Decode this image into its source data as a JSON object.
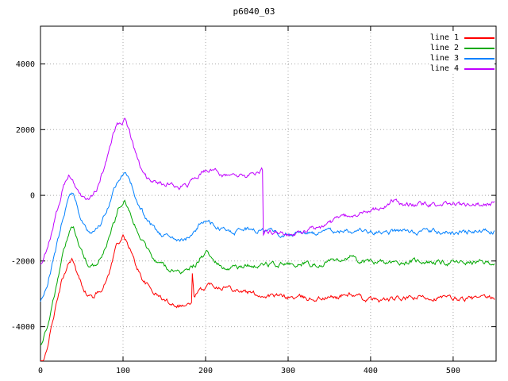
{
  "chart_data": {
    "type": "line",
    "title": "p6040_03",
    "xlabel": "",
    "ylabel": "",
    "xlim": [
      0,
      552
    ],
    "ylim": [
      -5050,
      5150
    ],
    "xticks": [
      0,
      100,
      200,
      300,
      400,
      500
    ],
    "yticks": [
      -4000,
      -2000,
      0,
      2000,
      4000
    ],
    "grid": true,
    "grid_style": "dotted",
    "legend_position": "top-right-inside",
    "background_color": "#ffffff",
    "border_color": "#000000",
    "grid_color": "#a8a8a8",
    "noise_amplitude": 55,
    "series": [
      {
        "name": "line 1",
        "color": "#ff0000",
        "points": [
          [
            0,
            -5400
          ],
          [
            5,
            -5000
          ],
          [
            15,
            -3800
          ],
          [
            25,
            -2700
          ],
          [
            33,
            -2100
          ],
          [
            38,
            -1900
          ],
          [
            44,
            -2400
          ],
          [
            50,
            -2700
          ],
          [
            57,
            -3050
          ],
          [
            63,
            -3100
          ],
          [
            70,
            -2950
          ],
          [
            78,
            -2700
          ],
          [
            85,
            -2200
          ],
          [
            92,
            -1500
          ],
          [
            100,
            -1250
          ],
          [
            108,
            -1600
          ],
          [
            115,
            -2100
          ],
          [
            125,
            -2600
          ],
          [
            135,
            -2900
          ],
          [
            150,
            -3200
          ],
          [
            163,
            -3300
          ],
          [
            175,
            -3350
          ],
          [
            183,
            -3300
          ],
          [
            184,
            -2450
          ],
          [
            186,
            -3050
          ],
          [
            195,
            -2900
          ],
          [
            205,
            -2700
          ],
          [
            215,
            -2750
          ],
          [
            230,
            -2800
          ],
          [
            250,
            -2950
          ],
          [
            270,
            -3050
          ],
          [
            300,
            -3100
          ],
          [
            330,
            -3150
          ],
          [
            360,
            -3100
          ],
          [
            375,
            -3000
          ],
          [
            390,
            -3150
          ],
          [
            410,
            -3200
          ],
          [
            440,
            -3150
          ],
          [
            470,
            -3100
          ],
          [
            500,
            -3150
          ],
          [
            525,
            -3150
          ],
          [
            550,
            -3150
          ]
        ]
      },
      {
        "name": "line 2",
        "color": "#00a800",
        "points": [
          [
            0,
            -4600
          ],
          [
            8,
            -4000
          ],
          [
            18,
            -2900
          ],
          [
            28,
            -1700
          ],
          [
            35,
            -1050
          ],
          [
            40,
            -950
          ],
          [
            46,
            -1450
          ],
          [
            52,
            -1800
          ],
          [
            58,
            -2100
          ],
          [
            65,
            -2150
          ],
          [
            72,
            -1950
          ],
          [
            80,
            -1500
          ],
          [
            88,
            -900
          ],
          [
            95,
            -400
          ],
          [
            102,
            -150
          ],
          [
            110,
            -600
          ],
          [
            118,
            -1100
          ],
          [
            128,
            -1600
          ],
          [
            140,
            -2000
          ],
          [
            155,
            -2250
          ],
          [
            165,
            -2350
          ],
          [
            178,
            -2300
          ],
          [
            188,
            -2100
          ],
          [
            195,
            -1850
          ],
          [
            202,
            -1750
          ],
          [
            210,
            -1900
          ],
          [
            220,
            -2150
          ],
          [
            235,
            -2200
          ],
          [
            255,
            -2150
          ],
          [
            280,
            -2100
          ],
          [
            310,
            -2100
          ],
          [
            340,
            -2100
          ],
          [
            365,
            -1950
          ],
          [
            375,
            -1880
          ],
          [
            385,
            -2000
          ],
          [
            400,
            -2050
          ],
          [
            430,
            -2050
          ],
          [
            460,
            -2000
          ],
          [
            490,
            -2050
          ],
          [
            520,
            -2050
          ],
          [
            550,
            -2050
          ]
        ]
      },
      {
        "name": "line 3",
        "color": "#0080ff",
        "points": [
          [
            0,
            -3200
          ],
          [
            8,
            -2700
          ],
          [
            18,
            -1700
          ],
          [
            28,
            -600
          ],
          [
            35,
            0
          ],
          [
            40,
            100
          ],
          [
            46,
            -500
          ],
          [
            52,
            -850
          ],
          [
            58,
            -1100
          ],
          [
            65,
            -1150
          ],
          [
            72,
            -950
          ],
          [
            80,
            -500
          ],
          [
            88,
            100
          ],
          [
            95,
            500
          ],
          [
            102,
            750
          ],
          [
            110,
            300
          ],
          [
            118,
            -200
          ],
          [
            128,
            -700
          ],
          [
            140,
            -1100
          ],
          [
            155,
            -1300
          ],
          [
            165,
            -1400
          ],
          [
            175,
            -1350
          ],
          [
            185,
            -1150
          ],
          [
            195,
            -800
          ],
          [
            200,
            -750
          ],
          [
            210,
            -900
          ],
          [
            220,
            -1050
          ],
          [
            235,
            -1100
          ],
          [
            255,
            -1050
          ],
          [
            275,
            -1100
          ],
          [
            300,
            -1200
          ],
          [
            320,
            -1150
          ],
          [
            350,
            -1100
          ],
          [
            380,
            -1100
          ],
          [
            410,
            -1150
          ],
          [
            440,
            -1100
          ],
          [
            470,
            -1100
          ],
          [
            500,
            -1150
          ],
          [
            525,
            -1100
          ],
          [
            550,
            -1120
          ]
        ]
      },
      {
        "name": "line 4",
        "color": "#c000ff",
        "points": [
          [
            0,
            -2100
          ],
          [
            8,
            -1600
          ],
          [
            18,
            -700
          ],
          [
            28,
            300
          ],
          [
            34,
            600
          ],
          [
            38,
            550
          ],
          [
            44,
            200
          ],
          [
            50,
            0
          ],
          [
            56,
            -100
          ],
          [
            62,
            -50
          ],
          [
            68,
            200
          ],
          [
            75,
            700
          ],
          [
            82,
            1300
          ],
          [
            88,
            1900
          ],
          [
            93,
            2250
          ],
          [
            97,
            2150
          ],
          [
            102,
            2300
          ],
          [
            108,
            1900
          ],
          [
            115,
            1300
          ],
          [
            122,
            800
          ],
          [
            130,
            500
          ],
          [
            140,
            400
          ],
          [
            150,
            350
          ],
          [
            158,
            300
          ],
          [
            168,
            250
          ],
          [
            178,
            300
          ],
          [
            188,
            500
          ],
          [
            195,
            700
          ],
          [
            205,
            800
          ],
          [
            212,
            750
          ],
          [
            220,
            600
          ],
          [
            230,
            550
          ],
          [
            240,
            600
          ],
          [
            250,
            550
          ],
          [
            258,
            600
          ],
          [
            264,
            650
          ],
          [
            268,
            800
          ],
          [
            269,
            780
          ],
          [
            270,
            -1150
          ],
          [
            280,
            -1100
          ],
          [
            290,
            -1150
          ],
          [
            300,
            -1200
          ],
          [
            310,
            -1150
          ],
          [
            320,
            -1100
          ],
          [
            330,
            -1050
          ],
          [
            345,
            -900
          ],
          [
            360,
            -750
          ],
          [
            375,
            -600
          ],
          [
            390,
            -500
          ],
          [
            400,
            -450
          ],
          [
            410,
            -400
          ],
          [
            420,
            -300
          ],
          [
            428,
            -150
          ],
          [
            435,
            -280
          ],
          [
            450,
            -300
          ],
          [
            465,
            -250
          ],
          [
            480,
            -300
          ],
          [
            500,
            -250
          ],
          [
            520,
            -300
          ],
          [
            540,
            -250
          ],
          [
            550,
            -250
          ]
        ]
      }
    ]
  }
}
